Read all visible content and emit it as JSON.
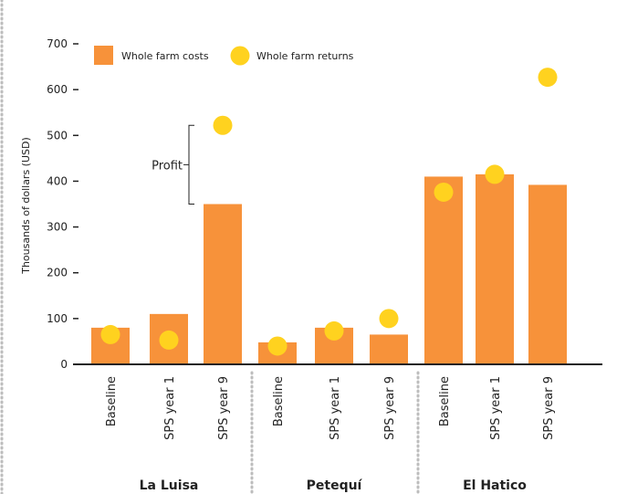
{
  "chart_data": {
    "type": "bar",
    "ylabel": "Thousands of dollars (USD)",
    "ylim": [
      0,
      700
    ],
    "yticks": [
      0,
      100,
      200,
      300,
      400,
      500,
      600,
      700
    ],
    "grid": false,
    "legend_position": "top-left",
    "categories": [
      "Baseline",
      "SPS year 1",
      "SPS year 9",
      "Baseline",
      "SPS year 1",
      "SPS year 9",
      "Baseline",
      "SPS year 1",
      "SPS year 9"
    ],
    "groups": [
      "La Luisa",
      "Petequí",
      "El Hatico"
    ],
    "series": [
      {
        "name": "Whole farm costs",
        "kind": "bar",
        "values": [
          80,
          110,
          350,
          48,
          80,
          65,
          410,
          415,
          392
        ]
      },
      {
        "name": "Whole farm returns",
        "kind": "point",
        "values": [
          65,
          53,
          522,
          40,
          73,
          100,
          376,
          415,
          627
        ]
      }
    ],
    "annotation": {
      "label": "Profit",
      "from": 350,
      "to": 522
    }
  },
  "colors": {
    "costs": "#F7923A",
    "returns": "#FFD21F",
    "axis": "#222222",
    "dotted_border": "#BDBDBD"
  }
}
